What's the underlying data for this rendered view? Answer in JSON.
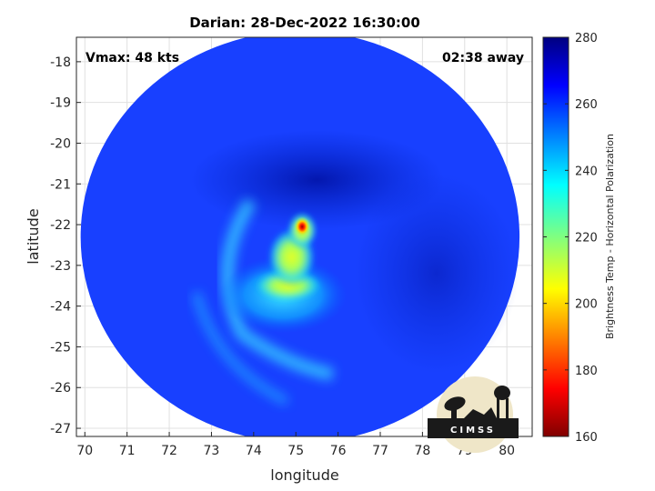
{
  "chart_data": {
    "type": "heatmap",
    "title": "Darian: 28-Dec-2022 16:30:00",
    "annotation_left": "Vmax: 48 kts",
    "annotation_right": "02:38 away",
    "xlabel": "longitude",
    "ylabel": "latitude",
    "xlim": [
      69.8,
      80.6
    ],
    "ylim": [
      -27.2,
      -17.4
    ],
    "xticks": [
      70,
      71,
      72,
      73,
      74,
      75,
      76,
      77,
      78,
      79,
      80
    ],
    "yticks": [
      -18,
      -19,
      -20,
      -21,
      -22,
      -23,
      -24,
      -25,
      -26,
      -27
    ],
    "grid": true,
    "colorbar": {
      "label": "Brightness Temp - Horizontal Polarization",
      "range": [
        160,
        280
      ],
      "ticks": [
        280,
        260,
        240,
        220,
        200,
        180,
        160
      ],
      "colormap": "jet"
    },
    "swath": {
      "center": [
        75.1,
        -22.3
      ],
      "radius_lon": 5.2,
      "radius_lat": 5.05
    },
    "features": [
      {
        "name": "background",
        "lon": 75.1,
        "lat": -22.3,
        "value": 255
      },
      {
        "name": "cold-core",
        "lon": 75.15,
        "lat": -22.05,
        "value": 185
      },
      {
        "name": "inner-ring",
        "lon": 74.9,
        "lat": -22.8,
        "value": 215
      },
      {
        "name": "southern-band",
        "lon": 74.7,
        "lat": -23.5,
        "value": 222
      },
      {
        "name": "outer-arc",
        "lon": 73.5,
        "lat": -23.0,
        "value": 238
      },
      {
        "name": "north-dark-band",
        "lon": 75.5,
        "lat": -20.9,
        "value": 268
      }
    ]
  },
  "logo": {
    "text": "CIMSS",
    "icon": "cimss-logo-icon"
  }
}
